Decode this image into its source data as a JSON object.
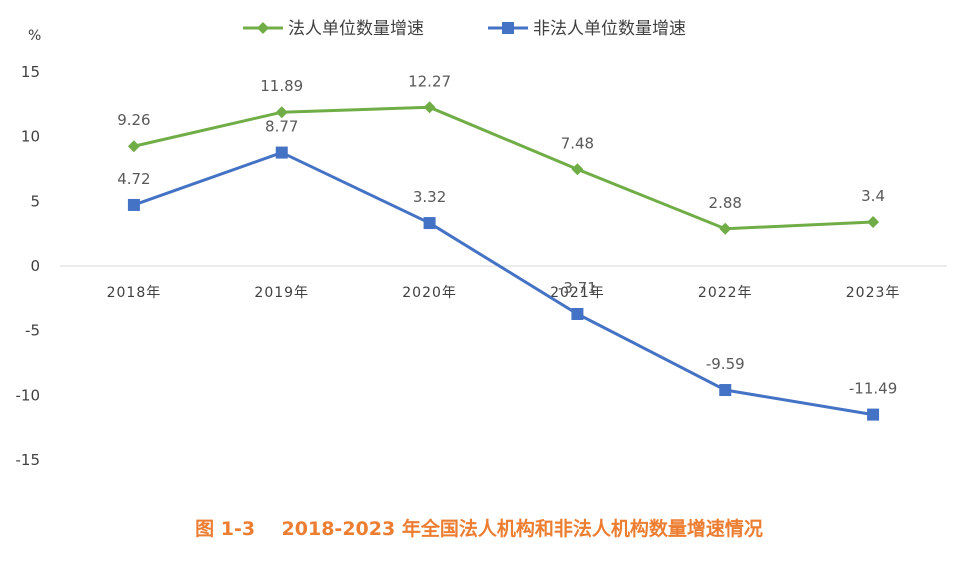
{
  "chart_data": {
    "type": "line",
    "title": "",
    "ylabel": "%",
    "xlabel": "",
    "categories": [
      "2018年",
      "2019年",
      "2020年",
      "2021年",
      "2022年",
      "2023年"
    ],
    "ylim": [
      -15,
      15
    ],
    "yticks": [
      15,
      10,
      5,
      0,
      -5,
      -10,
      -15
    ],
    "grid": false,
    "legend_position": "top-center",
    "series": [
      {
        "name": "法人单位数量增速",
        "values": [
          9.26,
          11.89,
          12.27,
          7.48,
          2.88,
          3.4
        ],
        "color": "#70ad47",
        "marker": "diamond"
      },
      {
        "name": "非法人单位数量增速",
        "values": [
          4.72,
          8.77,
          3.32,
          -3.71,
          -9.59,
          -11.49
        ],
        "color": "#4472c4",
        "marker": "square"
      }
    ]
  },
  "caption": "图 1-3    2018-2023 年全国法人机构和非法人机构数量增速情况"
}
